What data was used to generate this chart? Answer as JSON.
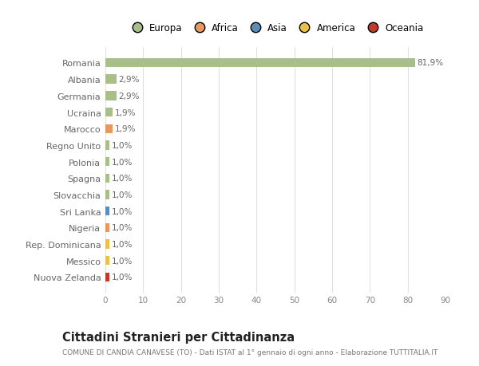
{
  "categories": [
    "Nuova Zelanda",
    "Messico",
    "Rep. Dominicana",
    "Nigeria",
    "Sri Lanka",
    "Slovacchia",
    "Spagna",
    "Polonia",
    "Regno Unito",
    "Marocco",
    "Ucraina",
    "Germania",
    "Albania",
    "Romania"
  ],
  "values": [
    1.0,
    1.0,
    1.0,
    1.0,
    1.0,
    1.0,
    1.0,
    1.0,
    1.0,
    1.9,
    1.9,
    2.9,
    2.9,
    81.9
  ],
  "bar_colors": [
    "#c0392b",
    "#e8c04a",
    "#e8c04a",
    "#e8985e",
    "#5b8db8",
    "#a8bf8a",
    "#a8bf8a",
    "#a8bf8a",
    "#a8bf8a",
    "#e8985e",
    "#a8bf8a",
    "#a8bf8a",
    "#a8bf8a",
    "#a8bf8a"
  ],
  "labels": [
    "1,0%",
    "1,0%",
    "1,0%",
    "1,0%",
    "1,0%",
    "1,0%",
    "1,0%",
    "1,0%",
    "1,0%",
    "1,9%",
    "1,9%",
    "2,9%",
    "2,9%",
    "81,9%"
  ],
  "legend_labels": [
    "Europa",
    "Africa",
    "Asia",
    "America",
    "Oceania"
  ],
  "legend_colors": [
    "#a8bf8a",
    "#e8985e",
    "#5b8db8",
    "#e8c04a",
    "#c0392b"
  ],
  "title": "Cittadini Stranieri per Cittadinanza",
  "subtitle": "COMUNE DI CANDIA CANAVESE (TO) - Dati ISTAT al 1° gennaio di ogni anno - Elaborazione TUTTITALIA.IT",
  "xlim": [
    0,
    90
  ],
  "xticks": [
    0,
    10,
    20,
    30,
    40,
    50,
    60,
    70,
    80,
    90
  ],
  "background_color": "#ffffff",
  "grid_color": "#e0e0e0"
}
